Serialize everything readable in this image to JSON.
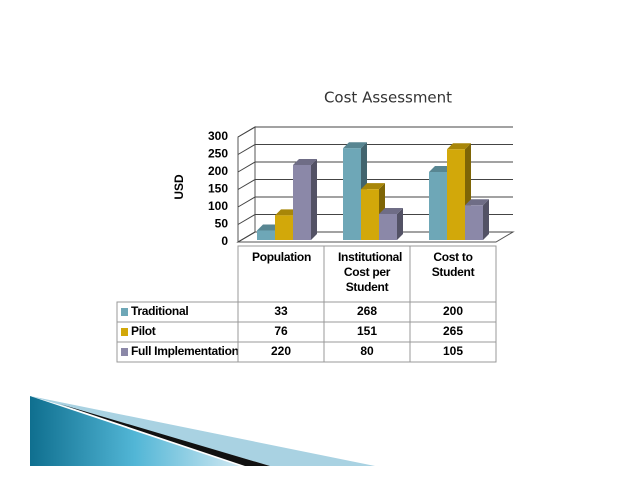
{
  "chart_data": {
    "type": "bar3d",
    "title": "Cost Assessment",
    "y_label": "USD",
    "categories": [
      "Population",
      "Institutional Cost per Student",
      "Cost to Student"
    ],
    "series": [
      {
        "name": "Traditional",
        "color": "#6ea7b7",
        "values": [
          33,
          268,
          200
        ]
      },
      {
        "name": "Pilot",
        "color": "#d2a80a",
        "values": [
          76,
          151,
          265
        ]
      },
      {
        "name": "Full Implementation",
        "color": "#8b88a8",
        "values": [
          220,
          80,
          105
        ]
      }
    ],
    "ylim": [
      0,
      300
    ],
    "yticks": [
      0,
      50,
      100,
      150,
      200,
      250,
      300
    ],
    "grid": true
  }
}
